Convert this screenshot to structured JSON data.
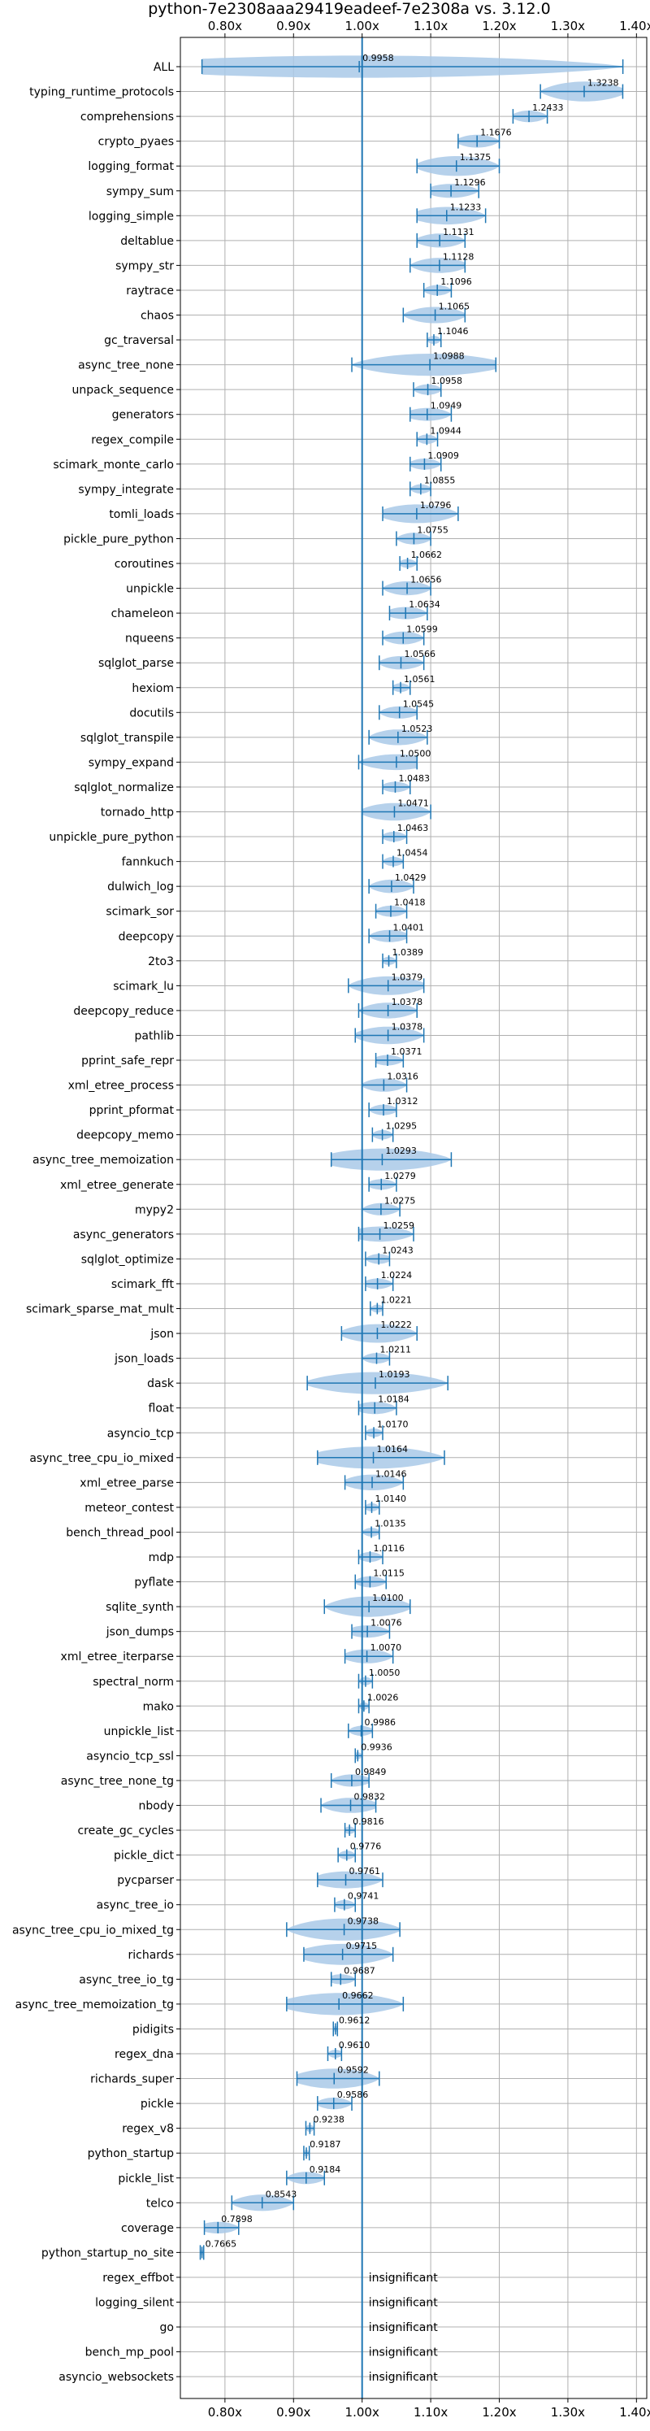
{
  "chart_data": {
    "type": "violin",
    "title": "python-7e2308aaa29419eadeef-7e2308a vs. 3.12.0",
    "xlabel": "",
    "ylabel": "",
    "xlim": [
      0.735,
      1.415
    ],
    "x_ticks": [
      0.8,
      0.9,
      1.0,
      1.1,
      1.2,
      1.3,
      1.4
    ],
    "x_tick_labels": [
      "0.80x",
      "0.90x",
      "1.00x",
      "1.10x",
      "1.20x",
      "1.30x",
      "1.40x"
    ],
    "reference_line": 1.0,
    "grid": true,
    "colors": {
      "violin": "#a9c9e8",
      "line": "#1f77b4",
      "grid": "#b0b0b0"
    },
    "benchmarks": [
      {
        "name": "ALL",
        "value": 0.9958,
        "min": 0.7665,
        "max": 1.3802,
        "label": "0.9958"
      },
      {
        "name": "typing_runtime_protocols",
        "value": 1.3238,
        "min": 1.26,
        "max": 1.38,
        "label": "1.3238"
      },
      {
        "name": "comprehensions",
        "value": 1.2433,
        "min": 1.22,
        "max": 1.27,
        "label": "1.2433"
      },
      {
        "name": "crypto_pyaes",
        "value": 1.1676,
        "min": 1.14,
        "max": 1.2,
        "label": "1.1676"
      },
      {
        "name": "logging_format",
        "value": 1.1375,
        "min": 1.08,
        "max": 1.2,
        "label": "1.1375"
      },
      {
        "name": "sympy_sum",
        "value": 1.1296,
        "min": 1.1,
        "max": 1.17,
        "label": "1.1296"
      },
      {
        "name": "logging_simple",
        "value": 1.1233,
        "min": 1.08,
        "max": 1.18,
        "label": "1.1233"
      },
      {
        "name": "deltablue",
        "value": 1.1131,
        "min": 1.08,
        "max": 1.15,
        "label": "1.1131"
      },
      {
        "name": "sympy_str",
        "value": 1.1128,
        "min": 1.07,
        "max": 1.15,
        "label": "1.1128"
      },
      {
        "name": "raytrace",
        "value": 1.1096,
        "min": 1.09,
        "max": 1.13,
        "label": "1.1096"
      },
      {
        "name": "chaos",
        "value": 1.1065,
        "min": 1.06,
        "max": 1.15,
        "label": "1.1065"
      },
      {
        "name": "gc_traversal",
        "value": 1.1046,
        "min": 1.095,
        "max": 1.115,
        "label": "1.1046"
      },
      {
        "name": "async_tree_none",
        "value": 1.0988,
        "min": 0.985,
        "max": 1.195,
        "label": "1.0988"
      },
      {
        "name": "unpack_sequence",
        "value": 1.0958,
        "min": 1.075,
        "max": 1.115,
        "label": "1.0958"
      },
      {
        "name": "generators",
        "value": 1.0949,
        "min": 1.07,
        "max": 1.13,
        "label": "1.0949"
      },
      {
        "name": "regex_compile",
        "value": 1.0944,
        "min": 1.08,
        "max": 1.11,
        "label": "1.0944"
      },
      {
        "name": "scimark_monte_carlo",
        "value": 1.0909,
        "min": 1.07,
        "max": 1.115,
        "label": "1.0909"
      },
      {
        "name": "sympy_integrate",
        "value": 1.0855,
        "min": 1.07,
        "max": 1.1,
        "label": "1.0855"
      },
      {
        "name": "tomli_loads",
        "value": 1.0796,
        "min": 1.03,
        "max": 1.14,
        "label": "1.0796"
      },
      {
        "name": "pickle_pure_python",
        "value": 1.0755,
        "min": 1.05,
        "max": 1.1,
        "label": "1.0755"
      },
      {
        "name": "coroutines",
        "value": 1.0662,
        "min": 1.055,
        "max": 1.08,
        "label": "1.0662"
      },
      {
        "name": "unpickle",
        "value": 1.0656,
        "min": 1.03,
        "max": 1.1,
        "label": "1.0656"
      },
      {
        "name": "chameleon",
        "value": 1.0634,
        "min": 1.04,
        "max": 1.095,
        "label": "1.0634"
      },
      {
        "name": "nqueens",
        "value": 1.0599,
        "min": 1.03,
        "max": 1.09,
        "label": "1.0599"
      },
      {
        "name": "sqlglot_parse",
        "value": 1.0566,
        "min": 1.025,
        "max": 1.09,
        "label": "1.0566"
      },
      {
        "name": "hexiom",
        "value": 1.0561,
        "min": 1.045,
        "max": 1.07,
        "label": "1.0561"
      },
      {
        "name": "docutils",
        "value": 1.0545,
        "min": 1.025,
        "max": 1.08,
        "label": "1.0545"
      },
      {
        "name": "sqlglot_transpile",
        "value": 1.0523,
        "min": 1.01,
        "max": 1.095,
        "label": "1.0523"
      },
      {
        "name": "sympy_expand",
        "value": 1.05,
        "min": 0.995,
        "max": 1.08,
        "label": "1.0500"
      },
      {
        "name": "sqlglot_normalize",
        "value": 1.0483,
        "min": 1.03,
        "max": 1.07,
        "label": "1.0483"
      },
      {
        "name": "tornado_http",
        "value": 1.0471,
        "min": 1.0,
        "max": 1.1,
        "label": "1.0471"
      },
      {
        "name": "unpickle_pure_python",
        "value": 1.0463,
        "min": 1.03,
        "max": 1.065,
        "label": "1.0463"
      },
      {
        "name": "fannkuch",
        "value": 1.0454,
        "min": 1.03,
        "max": 1.06,
        "label": "1.0454"
      },
      {
        "name": "dulwich_log",
        "value": 1.0429,
        "min": 1.01,
        "max": 1.075,
        "label": "1.0429"
      },
      {
        "name": "scimark_sor",
        "value": 1.0418,
        "min": 1.02,
        "max": 1.065,
        "label": "1.0418"
      },
      {
        "name": "deepcopy",
        "value": 1.0401,
        "min": 1.01,
        "max": 1.065,
        "label": "1.0401"
      },
      {
        "name": "2to3",
        "value": 1.0389,
        "min": 1.03,
        "max": 1.05,
        "label": "1.0389"
      },
      {
        "name": "scimark_lu",
        "value": 1.0379,
        "min": 0.98,
        "max": 1.09,
        "label": "1.0379"
      },
      {
        "name": "deepcopy_reduce",
        "value": 1.0378,
        "min": 0.995,
        "max": 1.08,
        "label": "1.0378"
      },
      {
        "name": "pathlib",
        "value": 1.0378,
        "min": 0.99,
        "max": 1.09,
        "label": "1.0378"
      },
      {
        "name": "pprint_safe_repr",
        "value": 1.0371,
        "min": 1.02,
        "max": 1.06,
        "label": "1.0371"
      },
      {
        "name": "xml_etree_process",
        "value": 1.0316,
        "min": 1.0,
        "max": 1.065,
        "label": "1.0316"
      },
      {
        "name": "pprint_pformat",
        "value": 1.0312,
        "min": 1.01,
        "max": 1.05,
        "label": "1.0312"
      },
      {
        "name": "deepcopy_memo",
        "value": 1.0295,
        "min": 1.015,
        "max": 1.045,
        "label": "1.0295"
      },
      {
        "name": "async_tree_memoization",
        "value": 1.0293,
        "min": 0.955,
        "max": 1.13,
        "label": "1.0293"
      },
      {
        "name": "xml_etree_generate",
        "value": 1.0279,
        "min": 1.01,
        "max": 1.05,
        "label": "1.0279"
      },
      {
        "name": "mypy2",
        "value": 1.0275,
        "min": 1.0,
        "max": 1.055,
        "label": "1.0275"
      },
      {
        "name": "async_generators",
        "value": 1.0259,
        "min": 0.995,
        "max": 1.075,
        "label": "1.0259"
      },
      {
        "name": "sqlglot_optimize",
        "value": 1.0243,
        "min": 1.005,
        "max": 1.04,
        "label": "1.0243"
      },
      {
        "name": "scimark_fft",
        "value": 1.0224,
        "min": 1.005,
        "max": 1.045,
        "label": "1.0224"
      },
      {
        "name": "scimark_sparse_mat_mult",
        "value": 1.0221,
        "min": 1.012,
        "max": 1.03,
        "label": "1.0221"
      },
      {
        "name": "json",
        "value": 1.0222,
        "min": 0.97,
        "max": 1.08,
        "label": "1.0222"
      },
      {
        "name": "json_loads",
        "value": 1.0211,
        "min": 1.0,
        "max": 1.04,
        "label": "1.0211"
      },
      {
        "name": "dask",
        "value": 1.0193,
        "min": 0.92,
        "max": 1.125,
        "label": "1.0193"
      },
      {
        "name": "float",
        "value": 1.0184,
        "min": 0.995,
        "max": 1.05,
        "label": "1.0184"
      },
      {
        "name": "asyncio_tcp",
        "value": 1.017,
        "min": 1.005,
        "max": 1.03,
        "label": "1.0170"
      },
      {
        "name": "async_tree_cpu_io_mixed",
        "value": 1.0164,
        "min": 0.935,
        "max": 1.12,
        "label": "1.0164"
      },
      {
        "name": "xml_etree_parse",
        "value": 1.0146,
        "min": 0.975,
        "max": 1.06,
        "label": "1.0146"
      },
      {
        "name": "meteor_contest",
        "value": 1.014,
        "min": 1.005,
        "max": 1.025,
        "label": "1.0140"
      },
      {
        "name": "bench_thread_pool",
        "value": 1.0135,
        "min": 1.0,
        "max": 1.025,
        "label": "1.0135"
      },
      {
        "name": "mdp",
        "value": 1.0116,
        "min": 0.995,
        "max": 1.03,
        "label": "1.0116"
      },
      {
        "name": "pyflate",
        "value": 1.0115,
        "min": 0.99,
        "max": 1.035,
        "label": "1.0115"
      },
      {
        "name": "sqlite_synth",
        "value": 1.01,
        "min": 0.945,
        "max": 1.07,
        "label": "1.0100"
      },
      {
        "name": "json_dumps",
        "value": 1.0076,
        "min": 0.985,
        "max": 1.04,
        "label": "1.0076"
      },
      {
        "name": "xml_etree_iterparse",
        "value": 1.007,
        "min": 0.975,
        "max": 1.045,
        "label": "1.0070"
      },
      {
        "name": "spectral_norm",
        "value": 1.005,
        "min": 0.995,
        "max": 1.015,
        "label": "1.0050"
      },
      {
        "name": "mako",
        "value": 1.0026,
        "min": 0.995,
        "max": 1.01,
        "label": "1.0026"
      },
      {
        "name": "unpickle_list",
        "value": 0.9986,
        "min": 0.98,
        "max": 1.015,
        "label": "0.9986"
      },
      {
        "name": "asyncio_tcp_ssl",
        "value": 0.9936,
        "min": 0.99,
        "max": 1.0,
        "label": "0.9936"
      },
      {
        "name": "async_tree_none_tg",
        "value": 0.9849,
        "min": 0.955,
        "max": 1.01,
        "label": "0.9849"
      },
      {
        "name": "nbody",
        "value": 0.9832,
        "min": 0.94,
        "max": 1.02,
        "label": "0.9832"
      },
      {
        "name": "create_gc_cycles",
        "value": 0.9816,
        "min": 0.975,
        "max": 0.99,
        "label": "0.9816"
      },
      {
        "name": "pickle_dict",
        "value": 0.9776,
        "min": 0.965,
        "max": 0.99,
        "label": "0.9776"
      },
      {
        "name": "pycparser",
        "value": 0.9761,
        "min": 0.935,
        "max": 1.03,
        "label": "0.9761"
      },
      {
        "name": "async_tree_io",
        "value": 0.9741,
        "min": 0.96,
        "max": 0.99,
        "label": "0.9741"
      },
      {
        "name": "async_tree_cpu_io_mixed_tg",
        "value": 0.9738,
        "min": 0.89,
        "max": 1.055,
        "label": "0.9738"
      },
      {
        "name": "richards",
        "value": 0.9715,
        "min": 0.915,
        "max": 1.045,
        "label": "0.9715"
      },
      {
        "name": "async_tree_io_tg",
        "value": 0.9687,
        "min": 0.955,
        "max": 0.99,
        "label": "0.9687"
      },
      {
        "name": "async_tree_memoization_tg",
        "value": 0.9662,
        "min": 0.89,
        "max": 1.06,
        "label": "0.9662"
      },
      {
        "name": "pidigits",
        "value": 0.9612,
        "min": 0.958,
        "max": 0.964,
        "label": "0.9612"
      },
      {
        "name": "regex_dna",
        "value": 0.961,
        "min": 0.95,
        "max": 0.97,
        "label": "0.9610"
      },
      {
        "name": "richards_super",
        "value": 0.9592,
        "min": 0.905,
        "max": 1.025,
        "label": "0.9592"
      },
      {
        "name": "pickle",
        "value": 0.9586,
        "min": 0.935,
        "max": 0.985,
        "label": "0.9586"
      },
      {
        "name": "regex_v8",
        "value": 0.9238,
        "min": 0.918,
        "max": 0.93,
        "label": "0.9238"
      },
      {
        "name": "python_startup",
        "value": 0.9187,
        "min": 0.915,
        "max": 0.923,
        "label": "0.9187"
      },
      {
        "name": "pickle_list",
        "value": 0.9184,
        "min": 0.89,
        "max": 0.945,
        "label": "0.9184"
      },
      {
        "name": "telco",
        "value": 0.8543,
        "min": 0.81,
        "max": 0.9,
        "label": "0.8543"
      },
      {
        "name": "coverage",
        "value": 0.7898,
        "min": 0.77,
        "max": 0.82,
        "label": "0.7898"
      },
      {
        "name": "python_startup_no_site",
        "value": 0.7665,
        "min": 0.764,
        "max": 0.769,
        "label": "0.7665"
      },
      {
        "name": "regex_effbot",
        "insignificant": true,
        "label": "insignificant"
      },
      {
        "name": "logging_silent",
        "insignificant": true,
        "label": "insignificant"
      },
      {
        "name": "go",
        "insignificant": true,
        "label": "insignificant"
      },
      {
        "name": "bench_mp_pool",
        "insignificant": true,
        "label": "insignificant"
      },
      {
        "name": "asyncio_websockets",
        "insignificant": true,
        "label": "insignificant"
      }
    ]
  }
}
